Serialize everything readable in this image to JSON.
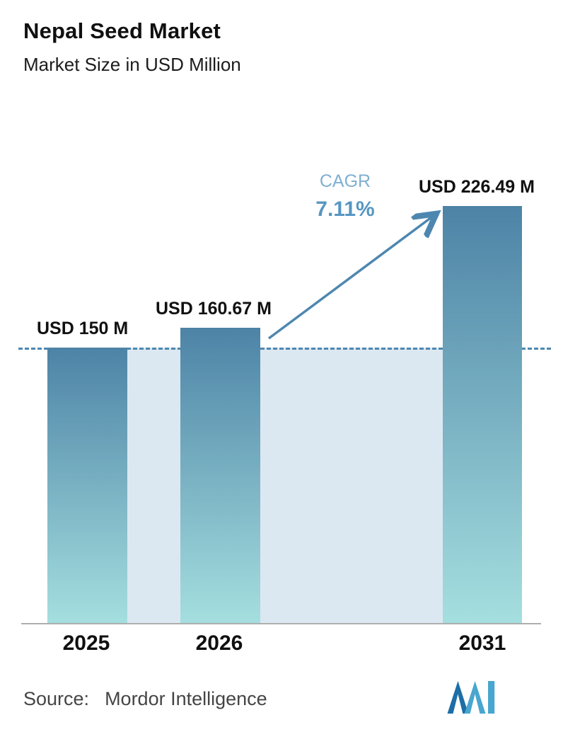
{
  "header": {
    "title": "Nepal Seed Market",
    "subtitle": "Market Size in USD Million"
  },
  "chart_data": {
    "type": "bar",
    "title": "Nepal Seed Market",
    "subtitle": "Market Size in USD Million",
    "categories": [
      "2025",
      "2026",
      "2031"
    ],
    "values": [
      150,
      160.67,
      226.49
    ],
    "value_labels": [
      "USD 150 M",
      "USD 160.67 M",
      "USD 226.49 M"
    ],
    "unit": "USD Million",
    "ylim": [
      0,
      260
    ],
    "baseline_value": 150,
    "cagr_label": "CAGR",
    "cagr_value": "7.11%",
    "grid": false,
    "legend": false,
    "colors": {
      "bar_gradient_top": "#4d83a6",
      "bar_gradient_bottom": "#a5dfdf",
      "band_fill": "#dce8f1",
      "dashed_line": "#4d87b0",
      "arrow": "#4d87b0",
      "cagr_label": "#7fb0d2",
      "cagr_value": "#5796c2"
    }
  },
  "footer": {
    "source_label": "Source:",
    "source_value": "Mordor Intelligence"
  }
}
